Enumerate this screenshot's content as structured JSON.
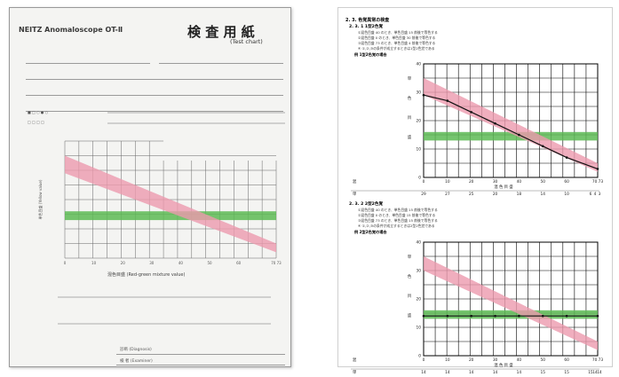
{
  "left_sheet": {
    "brand": "NEITZ Anomaloscope OT-Ⅱ",
    "title_jp": "検 査 用 紙",
    "title_en": "(Test chart)",
    "y_axis_label": "単色目盛 (Yellow value)",
    "x_axis_label": "混色目盛 (Red-green mixture value)",
    "x_ticks": [
      "0",
      "10",
      "20",
      "30",
      "40",
      "50",
      "60",
      "70 73"
    ],
    "diagnosis_label": "診断 (Diagnosis)",
    "examiner_label": "検 者 (Examiner)"
  },
  "right_sheet": {
    "section_title": "2. 3. 色覚異常の検査",
    "part1": {
      "heading": "2. 3. 1 1型2色覚",
      "notes": [
        "①混色目盛 40 のとき、単色目盛 15 前後で等色する",
        "②混色目盛 0 のとき、単色目盛 30 前後で等色する",
        "③混色目盛 73 のとき、単色目盛 4 前後で等色する",
        "④ ①,②,③の条件が成立するときは1型2色覚である"
      ],
      "example_label": "例 1型2色覚の場合",
      "match_row_label": "単",
      "match_values": [
        "29",
        "27",
        "25",
        "20",
        "18",
        "14",
        "10",
        "6",
        "4",
        "3"
      ]
    },
    "part2": {
      "heading": "2. 3. 2 2型2色覚",
      "notes": [
        "①混色目盛 40 のとき、単色目盛 15 前後で等色する",
        "②混色目盛 0 のとき、単色目盛 15 前後で等色する",
        "③混色目盛 73 のとき、単色目盛 15 前後で等色する",
        "④ ①,②,③の条件が成立するときは2型2色覚である"
      ],
      "example_label": "例 2型2色覚の場合",
      "match_row_label": "単",
      "match_values": [
        "14",
        "14",
        "14",
        "14",
        "14",
        "15",
        "15",
        "15",
        "14",
        "14"
      ]
    },
    "axis_y_label": [
      "単",
      "色",
      "目",
      "盛"
    ],
    "axis_x_label": "混 色 目 盛",
    "y_ticks": [
      "40",
      "30",
      "20",
      "10",
      "0"
    ],
    "x_ticks": [
      "0",
      "10",
      "20",
      "30",
      "40",
      "50",
      "60",
      "70 73"
    ],
    "row_label_mix": "混"
  },
  "colors": {
    "normal_band": "#5dba55",
    "tolerance_band": "#ec9aae",
    "line": "#111111"
  },
  "chart_data": [
    {
      "type": "line",
      "title": "1型2色覚の場合",
      "xlim": [
        0,
        73
      ],
      "ylim": [
        0,
        40
      ],
      "series": [
        {
          "x": [
            0,
            10,
            20,
            30,
            40,
            50,
            60,
            73
          ],
          "y": [
            29,
            27,
            23,
            19,
            15,
            11,
            7,
            3
          ]
        }
      ],
      "bands": {
        "normal_y": [
          13,
          16
        ],
        "tolerance_low": [
          [
            0,
            29
          ],
          [
            73,
            2
          ]
        ],
        "tolerance_high": [
          [
            0,
            35
          ],
          [
            73,
            5
          ]
        ]
      }
    },
    {
      "type": "line",
      "title": "2型2色覚の場合",
      "xlim": [
        0,
        73
      ],
      "ylim": [
        0,
        40
      ],
      "series": [
        {
          "x": [
            0,
            10,
            20,
            30,
            40,
            50,
            60,
            73
          ],
          "y": [
            14,
            14,
            14,
            14,
            14,
            14,
            14,
            14
          ]
        }
      ],
      "bands": {
        "normal_y": [
          13,
          16
        ],
        "tolerance_low": [
          [
            0,
            30
          ],
          [
            73,
            2
          ]
        ],
        "tolerance_high": [
          [
            0,
            35
          ],
          [
            73,
            5
          ]
        ]
      }
    }
  ]
}
